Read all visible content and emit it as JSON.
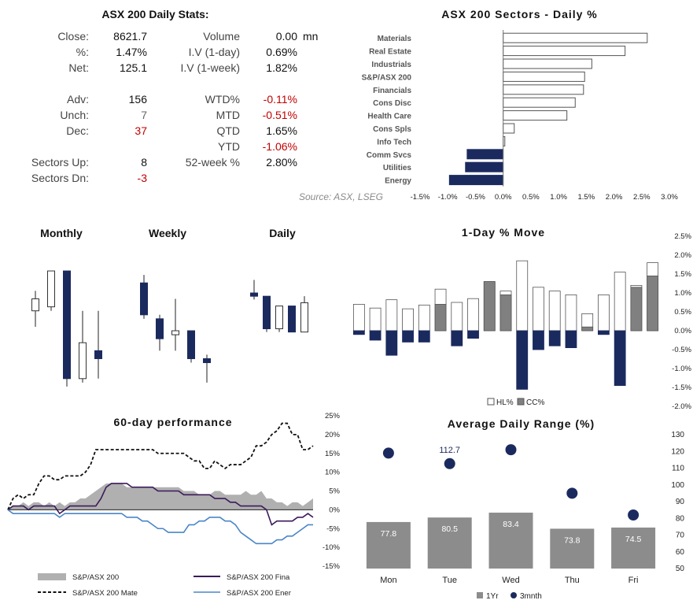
{
  "stats": {
    "title": "ASX 200 Daily Stats:",
    "left_rows": [
      {
        "label": "Close:",
        "value": "8621.7"
      },
      {
        "label": "%:",
        "value": "1.47%"
      },
      {
        "label": "Net:",
        "value": "125.1"
      },
      {
        "label": "",
        "value": ""
      },
      {
        "label": "Adv:",
        "value": "156"
      },
      {
        "label": "Unch:",
        "value": "7"
      },
      {
        "label": "Dec:",
        "value": "37"
      },
      {
        "label": "",
        "value": ""
      },
      {
        "label": "Sectors Up:",
        "value": "8"
      },
      {
        "label": "Sectors Dn:",
        "value": "-3"
      }
    ],
    "right_rows": [
      {
        "label": "Volume",
        "value": "0.00",
        "unit": "mn"
      },
      {
        "label": "I.V (1-day)",
        "value": "0.69%"
      },
      {
        "label": "I.V (1-week)",
        "value": "1.82%"
      },
      {
        "label": "",
        "value": ""
      },
      {
        "label": "WTD%",
        "value": "-0.11%"
      },
      {
        "label": "MTD",
        "value": "-0.51%"
      },
      {
        "label": "QTD",
        "value": "1.65%"
      },
      {
        "label": "YTD",
        "value": "-1.06%"
      },
      {
        "label": "52-week %",
        "value": "2.80%"
      }
    ],
    "colors": {
      "negative": "#c00000",
      "neutral": "#666666"
    }
  },
  "source_text": "Source: ASX, LSEG",
  "chart_data": [
    {
      "type": "bar",
      "orientation": "horizontal",
      "title": "ASX 200 Sectors - Daily %",
      "categories": [
        "Materials",
        "Real Estate",
        "Industrials",
        "S&P/ASX 200",
        "Financials",
        "Cons Disc",
        "Health Care",
        "Cons Spls",
        "Info Tech",
        "Comm Svcs",
        "Utilities",
        "Energy"
      ],
      "values": [
        2.6,
        2.2,
        1.6,
        1.47,
        1.45,
        1.3,
        1.15,
        0.2,
        0.03,
        -0.65,
        -0.68,
        -0.97
      ],
      "xlim": [
        -1.5,
        3.0
      ],
      "ticks": [
        "-1.5%",
        "-1.0%",
        "-0.5%",
        "0.0%",
        "0.5%",
        "1.0%",
        "1.5%",
        "2.0%",
        "2.5%",
        "3.0%"
      ],
      "colors": {
        "positive": "#ffffff",
        "negative": "#1b2a5e",
        "stroke": "#555555"
      }
    },
    {
      "type": "candlestick",
      "title": "Monthly",
      "candles": [
        {
          "o": 8.05,
          "h": 8.3,
          "l": 7.85,
          "c": 8.2,
          "up": true
        },
        {
          "o": 8.1,
          "h": 8.55,
          "l": 8.05,
          "c": 8.55,
          "up": true
        },
        {
          "o": 8.55,
          "h": 8.55,
          "l": 7.1,
          "c": 7.2,
          "up": false
        },
        {
          "o": 7.2,
          "h": 8.05,
          "l": 7.15,
          "c": 7.65,
          "up": true
        },
        {
          "o": 7.55,
          "h": 8.05,
          "l": 7.2,
          "c": 7.45,
          "up": false
        }
      ]
    },
    {
      "type": "candlestick",
      "title": "Weekly",
      "candles": [
        {
          "o": 8.4,
          "h": 8.5,
          "l": 7.95,
          "c": 8.0,
          "up": false
        },
        {
          "o": 7.95,
          "h": 8.0,
          "l": 7.55,
          "c": 7.7,
          "up": false
        },
        {
          "o": 7.75,
          "h": 8.2,
          "l": 7.55,
          "c": 7.8,
          "up": true
        },
        {
          "o": 7.8,
          "h": 7.8,
          "l": 7.4,
          "c": 7.45,
          "up": false
        },
        {
          "o": 7.45,
          "h": 7.5,
          "l": 7.15,
          "c": 7.4,
          "up": false
        }
      ]
    },
    {
      "type": "candlestick",
      "title": "Daily",
      "candles": [
        {
          "o": 8.55,
          "h": 8.75,
          "l": 8.45,
          "c": 8.5,
          "up": false
        },
        {
          "o": 8.5,
          "h": 8.5,
          "l": 7.95,
          "c": 8.0,
          "up": false
        },
        {
          "o": 8.0,
          "h": 8.35,
          "l": 7.95,
          "c": 8.35,
          "up": true
        },
        {
          "o": 8.35,
          "h": 8.35,
          "l": 7.95,
          "c": 7.95,
          "up": false
        },
        {
          "o": 7.95,
          "h": 8.5,
          "l": 7.95,
          "c": 8.4,
          "up": true
        }
      ]
    },
    {
      "type": "bar",
      "title": "1-Day % Move",
      "series": [
        {
          "name": "HL%",
          "values": [
            0.7,
            0.6,
            0.82,
            0.58,
            0.68,
            1.1,
            0.75,
            0.85,
            1.3,
            1.05,
            1.85,
            1.15,
            1.05,
            0.95,
            0.45,
            0.95,
            1.55,
            1.2,
            1.8
          ]
        },
        {
          "name": "CC%",
          "values": [
            -0.1,
            -0.25,
            -0.65,
            -0.3,
            -0.3,
            0.7,
            -0.4,
            -0.2,
            1.3,
            0.95,
            -1.55,
            -0.5,
            -0.4,
            -0.45,
            0.1,
            -0.1,
            -1.45,
            1.15,
            1.45
          ]
        }
      ],
      "ylim": [
        -2.0,
        2.5
      ],
      "ticks": [
        "2.5%",
        "2.0%",
        "1.5%",
        "1.0%",
        "0.5%",
        "0.0%",
        "-0.5%",
        "-1.0%",
        "-1.5%",
        "-2.0%"
      ],
      "colors": {
        "hl_fill": "#ffffff",
        "cc_pos": "#808080",
        "cc_neg": "#1b2a5e",
        "stroke": "#555555"
      },
      "legend": "bottom"
    },
    {
      "type": "line",
      "title": "60-day performance",
      "ylim": [
        -15,
        25
      ],
      "ticks": [
        "25%",
        "20%",
        "15%",
        "10%",
        "5%",
        "0%",
        "-5%",
        "-10%",
        "-15%"
      ],
      "series": [
        {
          "name": "S&P/ASX 200",
          "style": "area",
          "color": "#b0b0b0",
          "values": [
            0,
            1,
            1,
            2,
            1,
            2,
            2,
            1,
            2,
            1,
            2,
            1,
            2,
            2,
            3,
            3,
            4,
            5,
            6,
            7,
            7,
            7,
            7,
            6,
            6,
            6,
            6,
            6,
            6,
            6,
            6,
            6,
            6,
            6,
            5,
            5,
            5,
            4,
            4,
            4,
            5,
            5,
            4,
            4,
            4,
            4,
            5,
            4,
            4,
            5,
            3,
            3,
            2,
            2,
            1,
            2,
            2,
            1,
            2,
            3
          ]
        },
        {
          "name": "S&P/ASX 200 Fina",
          "style": "line",
          "color": "#3b1a5a",
          "values": [
            0,
            1,
            1,
            1,
            0,
            1,
            1,
            1,
            1,
            1,
            -1,
            0,
            1,
            1,
            1,
            1,
            1,
            1,
            3,
            6,
            7,
            7,
            7,
            7,
            6,
            6,
            6,
            6,
            6,
            5,
            5,
            5,
            5,
            5,
            4,
            4,
            4,
            4,
            4,
            4,
            3,
            3,
            3,
            2,
            2,
            1,
            1,
            1,
            1,
            1,
            0,
            -4,
            -3,
            -3,
            -3,
            -3,
            -2,
            -2,
            -1,
            -2
          ]
        },
        {
          "name": "S&P/ASX 200 Mate",
          "style": "dashed",
          "color": "#111111",
          "values": [
            0,
            3,
            4,
            3,
            4,
            4,
            7,
            9,
            9,
            8,
            8,
            9,
            9,
            9,
            9,
            10,
            12,
            16,
            16,
            16,
            16,
            16,
            16,
            16,
            16,
            16,
            16,
            16,
            16,
            15,
            15,
            15,
            15,
            15,
            15,
            14,
            13,
            13,
            11,
            11,
            13,
            12,
            11,
            12,
            12,
            12,
            13,
            14,
            17,
            17,
            18,
            20,
            21,
            23,
            23,
            20,
            20,
            16,
            16,
            17
          ]
        },
        {
          "name": "S&P/ASX 200 Ener",
          "style": "line",
          "color": "#4a86c8",
          "values": [
            0,
            -1,
            -1,
            -1,
            -1,
            -1,
            -1,
            -1,
            -1,
            -1,
            -2,
            -1,
            -1,
            -1,
            -1,
            -1,
            -1,
            -1,
            -1,
            -1,
            -1,
            -1,
            -1,
            -2,
            -2,
            -2,
            -3,
            -3,
            -4,
            -5,
            -5,
            -6,
            -6,
            -6,
            -6,
            -4,
            -4,
            -3,
            -3,
            -2,
            -2,
            -2,
            -3,
            -3,
            -4,
            -6,
            -7,
            -8,
            -9,
            -9,
            -9,
            -9,
            -8,
            -8,
            -7,
            -7,
            -6,
            -5,
            -4,
            -4
          ]
        }
      ],
      "legend": "bottom"
    },
    {
      "type": "bar",
      "title": "Average Daily Range (%)",
      "categories": [
        "Mon",
        "Tue",
        "Wed",
        "Thu",
        "Fri"
      ],
      "series": [
        {
          "name": "1Yr",
          "style": "bar",
          "color": "#8c8c8c",
          "values": [
            77.8,
            80.5,
            83.4,
            73.8,
            74.5
          ]
        },
        {
          "name": "3mnth",
          "style": "dot",
          "color": "#1b2a5e",
          "values": [
            119,
            112.7,
            121,
            95,
            82
          ]
        }
      ],
      "ylim": [
        50,
        130
      ],
      "ticks": [
        "130",
        "120",
        "110",
        "100",
        "90",
        "80",
        "70",
        "60",
        "50"
      ],
      "annotation": "112.7",
      "legend": "bottom"
    }
  ]
}
